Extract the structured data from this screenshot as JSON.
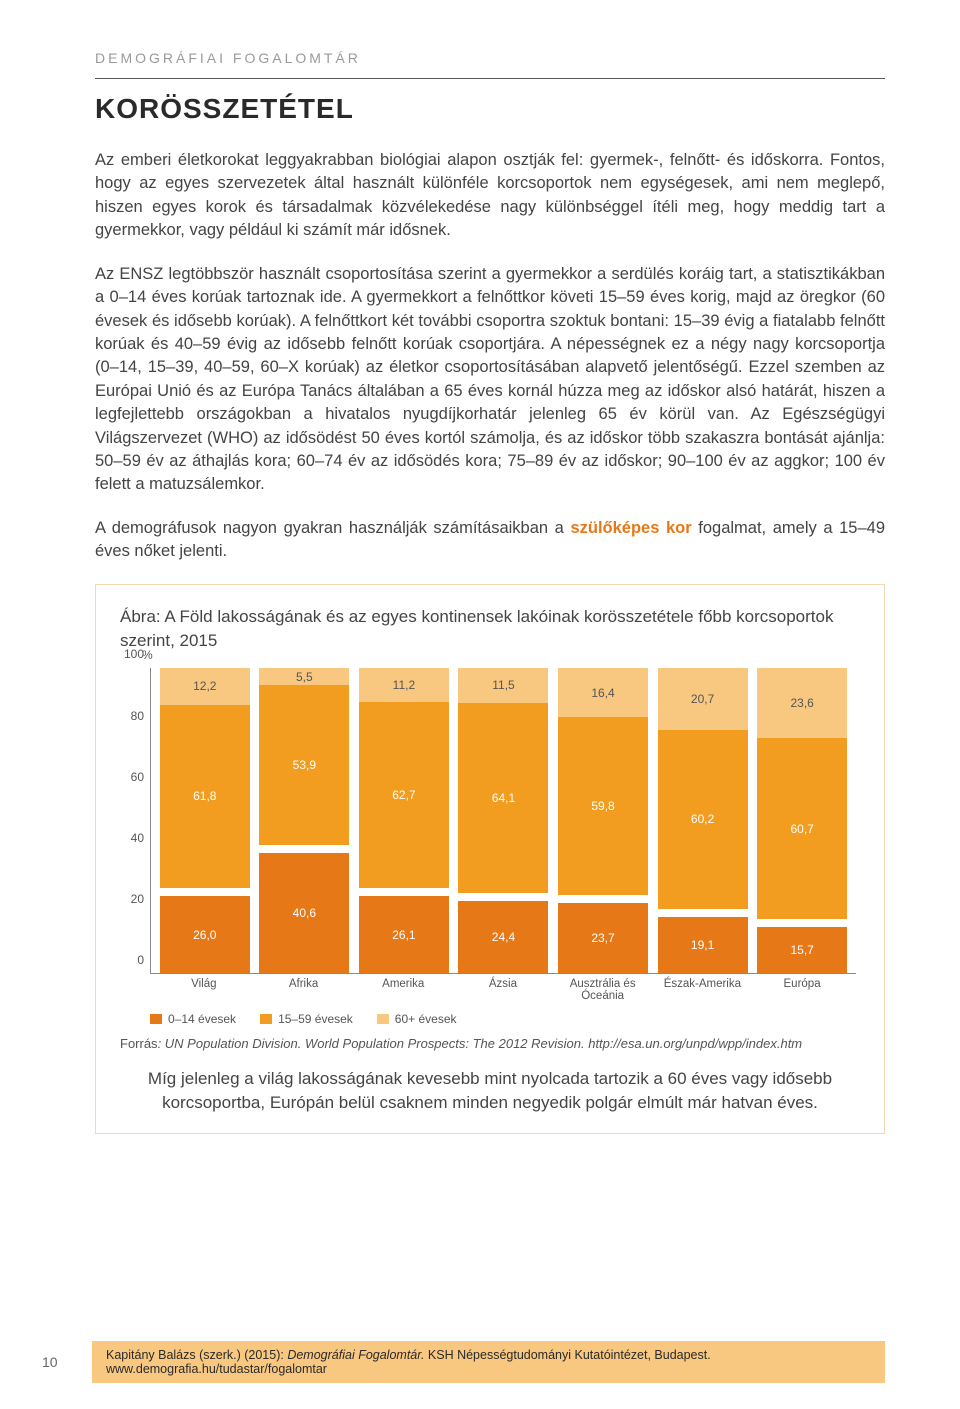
{
  "header": {
    "overline": "DEMOGRÁFIAI FOGALOMTÁR",
    "title": "KORÖSSZETÉTEL"
  },
  "paragraphs": {
    "p1": "Az emberi életkorokat leggyakrabban biológiai alapon osztják fel: gyermek-, felnőtt- és időskorra. Fontos, hogy az egyes szervezetek által használt különféle korcsoportok nem egységesek, ami nem meglepő, hiszen egyes korok és társadalmak közvélekedése nagy különbséggel ítéli meg, hogy meddig tart a gyermekkor, vagy például ki számít már idősnek.",
    "p2a": "Az ENSZ legtöbbször használt csoportosítása szerint a gyermekkor a serdülés koráig tart, a statisztikákban a 0–14 éves korúak tartoznak ide. A gyermekkort a felnőttkor követi 15–59 éves korig, majd az öregkor (60 évesek és idősebb korúak). A felnőttkort két további csoportra szoktuk bontani: 15–39 évig a fiatalabb felnőtt korúak és 40–59 évig az idősebb felnőtt korúak csoportjára. A népességnek ez a négy nagy korcsoportja (0–14, 15–39, 40–59, 60–X korúak) az életkor csoportosításában alapvető jelentőségű. Ezzel szemben az Európai Unió és az Európa Tanács általában a 65 éves kornál húzza meg az időskor alsó határát, hiszen a legfejlettebb országokban a hivatalos nyugdíjkorhatár jelenleg 65 év körül van. Az Egészségügyi Világszervezet (WHO) az idősödést 50 éves kortól számolja, és az időskor több szakaszra bontását ajánlja: 50–59 év az áthajlás kora; 60–74 év az idősödés kora; 75–89 év az időskor; 90–100 év az aggkor; 100 év felett a matuzsálemkor.",
    "p3a": "A demográfusok nagyon gyakran használják számításaikban a ",
    "p3_keyword": "szülőképes kor",
    "p3b": " fogalmat, amely a 15–49 éves nőket jelenti."
  },
  "figure": {
    "title": "Ábra: A Föld lakosságának és az egyes kontinensek lakóinak korösszetétele főbb korcsoportok szerint, 2015",
    "y_unit": "%",
    "y_ticks": [
      "0",
      "20",
      "40",
      "60",
      "80",
      "100"
    ],
    "categories": [
      "Világ",
      "Afrika",
      "Amerika",
      "Ázsia",
      "Ausztrália és Óceánia",
      "Észak-Amerika",
      "Európa"
    ],
    "series": [
      {
        "name": "0–14 évesek",
        "color": "#e77817",
        "values": [
          26.0,
          40.6,
          26.1,
          24.4,
          23.7,
          19.1,
          15.7
        ]
      },
      {
        "name": "15–59 évesek",
        "color": "#f29d1f",
        "values": [
          61.8,
          53.9,
          62.7,
          64.1,
          59.8,
          60.2,
          60.7
        ]
      },
      {
        "name": "60+ évesek",
        "color": "#f8c780",
        "values": [
          12.2,
          5.5,
          11.2,
          11.5,
          16.4,
          20.7,
          23.6
        ]
      }
    ],
    "source_label": "Forrás",
    "source_text": ": UN Population Division. World Population Prospects: The 2012 Revision. http://esa.un.org/unpd/wpp/index.htm",
    "conclusion": "Míg jelenleg a világ lakosságának kevesebb mint nyolcada tartozik a 60 éves vagy idősebb korcsoportba, Európán belül csaknem minden negyedik polgár elmúlt már hatvan éves."
  },
  "legend": {
    "l0": "0–14 évesek",
    "l1": "15–59 évesek",
    "l2": "60+ évesek"
  },
  "footer": {
    "page": "10",
    "citation_a": "Kapitány Balázs (szerk.) (2015): ",
    "citation_em": "Demográfiai Fogalomtár.",
    "citation_b": " KSH Népességtudományi Kutatóintézet, Budapest. ",
    "citation_url": "www.demografia.hu/tudastar/fogalomtar"
  }
}
